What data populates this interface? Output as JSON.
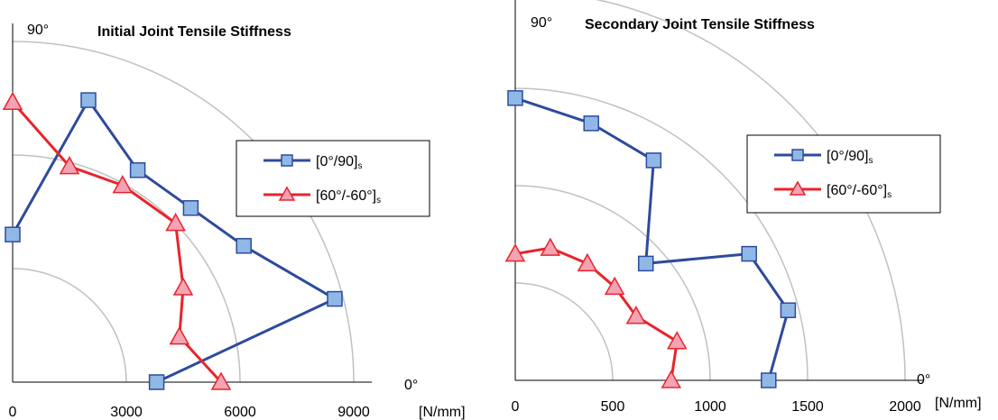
{
  "chart_data": [
    {
      "type": "polar-line",
      "title": "Initial Joint Tensile Stiffness",
      "angle_min_label": "0°",
      "angle_max_label": "90°",
      "unit": "[N/mm]",
      "radial_ticks": [
        0,
        3000,
        6000,
        9000
      ],
      "rmax": 9000,
      "angle_range_deg": [
        0,
        90
      ],
      "grid": true,
      "legend_position": "right",
      "series": [
        {
          "name": "[0°/90]",
          "name_sub": "s",
          "color": "#2e4b9b",
          "marker": "square",
          "marker_color": "#8fb8e6",
          "points": [
            {
              "x": 3800,
              "y": 0
            },
            {
              "x": 8500,
              "y": 2200
            },
            {
              "x": 6100,
              "y": 3600
            },
            {
              "x": 4700,
              "y": 4600
            },
            {
              "x": 3300,
              "y": 5600
            },
            {
              "x": 2000,
              "y": 7450
            },
            {
              "x": 0,
              "y": 3900
            }
          ]
        },
        {
          "name": "[60°/-60°]",
          "name_sub": "s",
          "color": "#e8242c",
          "marker": "triangle",
          "marker_color": "#f4a3b3",
          "points": [
            {
              "x": 5500,
              "y": 0
            },
            {
              "x": 4400,
              "y": 1200
            },
            {
              "x": 4500,
              "y": 2500
            },
            {
              "x": 4300,
              "y": 4200
            },
            {
              "x": 2900,
              "y": 5200
            },
            {
              "x": 1500,
              "y": 5700
            },
            {
              "x": 0,
              "y": 7400
            }
          ]
        }
      ]
    },
    {
      "type": "polar-line",
      "title": "Secondary Joint Tensile Stiffness",
      "angle_min_label": "0°",
      "angle_max_label": "90°",
      "unit": "[N/mm]",
      "radial_ticks": [
        0,
        500,
        1000,
        1500,
        2000
      ],
      "rmax": 2000,
      "angle_range_deg": [
        0,
        90
      ],
      "grid": true,
      "legend_position": "right",
      "series": [
        {
          "name": "[0°/90]",
          "name_sub": "s",
          "color": "#2e4b9b",
          "marker": "square",
          "marker_color": "#8fb8e6",
          "points": [
            {
              "x": 1300,
              "y": 0
            },
            {
              "x": 1400,
              "y": 360
            },
            {
              "x": 1200,
              "y": 650
            },
            {
              "x": 670,
              "y": 600
            },
            {
              "x": 710,
              "y": 1130
            },
            {
              "x": 390,
              "y": 1320
            },
            {
              "x": 0,
              "y": 1450
            }
          ]
        },
        {
          "name": "[60°/-60°]",
          "name_sub": "s",
          "color": "#e8242c",
          "marker": "triangle",
          "marker_color": "#f4a3b3",
          "points": [
            {
              "x": 800,
              "y": 0
            },
            {
              "x": 830,
              "y": 200
            },
            {
              "x": 620,
              "y": 330
            },
            {
              "x": 510,
              "y": 480
            },
            {
              "x": 370,
              "y": 600
            },
            {
              "x": 180,
              "y": 680
            },
            {
              "x": 0,
              "y": 650
            }
          ]
        }
      ]
    }
  ]
}
